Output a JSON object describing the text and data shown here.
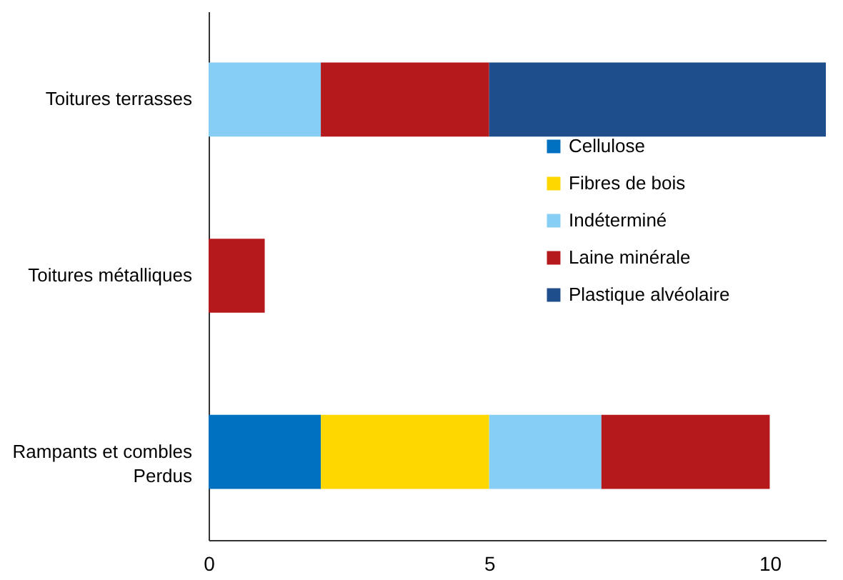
{
  "chart_data": {
    "type": "bar",
    "orientation": "horizontal",
    "stacked": true,
    "categories": [
      "Toitures terrasses",
      "Toitures métalliques",
      "Rampants et combles Perdus"
    ],
    "series": [
      {
        "name": "Cellulose",
        "color": "#0070c0",
        "values": [
          null,
          null,
          2
        ]
      },
      {
        "name": "Fibres de bois",
        "color": "#ffd700",
        "values": [
          null,
          null,
          3
        ]
      },
      {
        "name": "Indéterminé",
        "color": "#87cef5",
        "values": [
          2,
          null,
          2
        ]
      },
      {
        "name": "Laine minérale",
        "color": "#b5191b",
        "values": [
          3,
          1,
          3
        ]
      },
      {
        "name": "Plastique alvéolaire",
        "color": "#1f4e8c",
        "values": [
          6,
          null,
          null
        ]
      }
    ],
    "xlim": [
      0,
      11
    ],
    "xticks": [
      0,
      5,
      10
    ],
    "grid": false,
    "legend": "right"
  }
}
